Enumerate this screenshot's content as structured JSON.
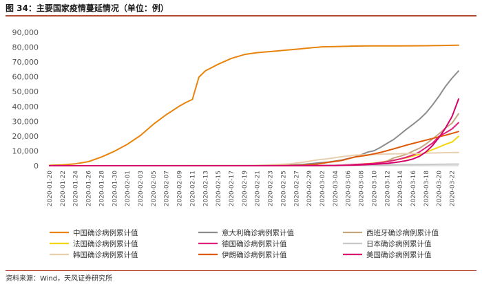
{
  "header": {
    "title": "图 34：主要国家疫情蔓延情况（单位：例）"
  },
  "footer": {
    "source": "资料来源：Wind，天风证券研究所"
  },
  "chart_data": {
    "type": "line",
    "ylim": [
      0,
      90000
    ],
    "yticks": [
      0,
      10000,
      20000,
      30000,
      40000,
      50000,
      60000,
      70000,
      80000,
      90000
    ],
    "ytick_labels": [
      "0",
      "10,000",
      "20,000",
      "30,000",
      "40,000",
      "50,000",
      "60,000",
      "70,000",
      "80,000",
      "90,000"
    ],
    "x_start": "2020-01-20",
    "x_end": "2020-03-23",
    "x_tick_labels": [
      "2020-01-20",
      "2020-01-22",
      "2020-01-24",
      "2020-01-26",
      "2020-01-28",
      "2020-01-30",
      "2020-02-01",
      "2020-02-03",
      "2020-02-05",
      "2020-02-07",
      "2020-02-09",
      "2020-02-11",
      "2020-02-13",
      "2020-02-15",
      "2020-02-17",
      "2020-02-19",
      "2020-02-21",
      "2020-02-23",
      "2020-02-25",
      "2020-02-27",
      "2020-02-29",
      "2020-03-02",
      "2020-03-04",
      "2020-03-06",
      "2020-03-08",
      "2020-03-10",
      "2020-03-12",
      "2020-03-14",
      "2020-03-16",
      "2020-03-18",
      "2020-03-20",
      "2020-03-22"
    ],
    "grid": false,
    "legend_position": "bottom",
    "series": [
      {
        "name": "中国确诊病例累计值",
        "color": "#e8830c",
        "points": [
          [
            "2020-01-20",
            300
          ],
          [
            "2020-01-22",
            570
          ],
          [
            "2020-01-24",
            1300
          ],
          [
            "2020-01-26",
            2800
          ],
          [
            "2020-01-28",
            5900
          ],
          [
            "2020-01-30",
            9800
          ],
          [
            "2020-02-01",
            14500
          ],
          [
            "2020-02-03",
            20400
          ],
          [
            "2020-02-05",
            28000
          ],
          [
            "2020-02-07",
            34500
          ],
          [
            "2020-02-09",
            40200
          ],
          [
            "2020-02-10",
            42700
          ],
          [
            "2020-02-11",
            44700
          ],
          [
            "2020-02-12",
            59800
          ],
          [
            "2020-02-13",
            64000
          ],
          [
            "2020-02-15",
            68500
          ],
          [
            "2020-02-17",
            72400
          ],
          [
            "2020-02-19",
            75000
          ],
          [
            "2020-02-21",
            76300
          ],
          [
            "2020-02-23",
            77000
          ],
          [
            "2020-02-25",
            77800
          ],
          [
            "2020-02-27",
            78600
          ],
          [
            "2020-02-29",
            79400
          ],
          [
            "2020-03-02",
            80200
          ],
          [
            "2020-03-04",
            80400
          ],
          [
            "2020-03-06",
            80650
          ],
          [
            "2020-03-08",
            80750
          ],
          [
            "2020-03-10",
            80800
          ],
          [
            "2020-03-12",
            80850
          ],
          [
            "2020-03-14",
            80850
          ],
          [
            "2020-03-16",
            80900
          ],
          [
            "2020-03-18",
            80950
          ],
          [
            "2020-03-20",
            81100
          ],
          [
            "2020-03-22",
            81250
          ],
          [
            "2020-03-23",
            81300
          ]
        ]
      },
      {
        "name": "意大利确诊病例累计值",
        "color": "#8c8c8c",
        "points": [
          [
            "2020-01-20",
            0
          ],
          [
            "2020-02-20",
            3
          ],
          [
            "2020-02-22",
            79
          ],
          [
            "2020-02-24",
            229
          ],
          [
            "2020-02-26",
            453
          ],
          [
            "2020-02-28",
            888
          ],
          [
            "2020-03-01",
            1694
          ],
          [
            "2020-03-03",
            2502
          ],
          [
            "2020-03-05",
            3858
          ],
          [
            "2020-03-07",
            5883
          ],
          [
            "2020-03-08",
            7375
          ],
          [
            "2020-03-09",
            9172
          ],
          [
            "2020-03-10",
            10149
          ],
          [
            "2020-03-11",
            12462
          ],
          [
            "2020-03-12",
            15113
          ],
          [
            "2020-03-13",
            17660
          ],
          [
            "2020-03-14",
            21157
          ],
          [
            "2020-03-15",
            24747
          ],
          [
            "2020-03-16",
            27980
          ],
          [
            "2020-03-17",
            31506
          ],
          [
            "2020-03-18",
            35713
          ],
          [
            "2020-03-19",
            41035
          ],
          [
            "2020-03-20",
            47021
          ],
          [
            "2020-03-21",
            53578
          ],
          [
            "2020-03-22",
            59138
          ],
          [
            "2020-03-23",
            63927
          ]
        ]
      },
      {
        "name": "西班牙确诊病例累计值",
        "color": "#c4a77e",
        "points": [
          [
            "2020-01-20",
            0
          ],
          [
            "2020-03-01",
            84
          ],
          [
            "2020-03-03",
            165
          ],
          [
            "2020-03-05",
            282
          ],
          [
            "2020-03-07",
            500
          ],
          [
            "2020-03-09",
            1231
          ],
          [
            "2020-03-10",
            1695
          ],
          [
            "2020-03-11",
            2277
          ],
          [
            "2020-03-12",
            3146
          ],
          [
            "2020-03-13",
            5232
          ],
          [
            "2020-03-14",
            6391
          ],
          [
            "2020-03-15",
            7798
          ],
          [
            "2020-03-16",
            9942
          ],
          [
            "2020-03-17",
            11826
          ],
          [
            "2020-03-18",
            14769
          ],
          [
            "2020-03-19",
            18077
          ],
          [
            "2020-03-20",
            21571
          ],
          [
            "2020-03-21",
            25496
          ],
          [
            "2020-03-22",
            28768
          ],
          [
            "2020-03-23",
            35136
          ]
        ]
      },
      {
        "name": "法国确诊病例累计值",
        "color": "#f2d60f",
        "points": [
          [
            "2020-01-20",
            0
          ],
          [
            "2020-02-28",
            57
          ],
          [
            "2020-03-02",
            191
          ],
          [
            "2020-03-04",
            285
          ],
          [
            "2020-03-06",
            653
          ],
          [
            "2020-03-08",
            1126
          ],
          [
            "2020-03-10",
            1784
          ],
          [
            "2020-03-12",
            2876
          ],
          [
            "2020-03-14",
            4469
          ],
          [
            "2020-03-15",
            5380
          ],
          [
            "2020-03-16",
            6573
          ],
          [
            "2020-03-17",
            7652
          ],
          [
            "2020-03-18",
            9043
          ],
          [
            "2020-03-19",
            10871
          ],
          [
            "2020-03-20",
            12612
          ],
          [
            "2020-03-21",
            14459
          ],
          [
            "2020-03-22",
            16018
          ],
          [
            "2020-03-23",
            19856
          ]
        ]
      },
      {
        "name": "德国确诊病例累计值",
        "color": "#e0217a",
        "points": [
          [
            "2020-01-20",
            0
          ],
          [
            "2020-02-28",
            60
          ],
          [
            "2020-03-02",
            160
          ],
          [
            "2020-03-04",
            262
          ],
          [
            "2020-03-06",
            670
          ],
          [
            "2020-03-08",
            1040
          ],
          [
            "2020-03-10",
            1565
          ],
          [
            "2020-03-12",
            2745
          ],
          [
            "2020-03-14",
            4585
          ],
          [
            "2020-03-15",
            5795
          ],
          [
            "2020-03-16",
            7272
          ],
          [
            "2020-03-17",
            9367
          ],
          [
            "2020-03-18",
            12327
          ],
          [
            "2020-03-19",
            15320
          ],
          [
            "2020-03-20",
            19848
          ],
          [
            "2020-03-21",
            22213
          ],
          [
            "2020-03-22",
            24873
          ],
          [
            "2020-03-23",
            29056
          ]
        ]
      },
      {
        "name": "日本确诊病例累计值",
        "color": "#c8c8c8",
        "points": [
          [
            "2020-01-20",
            0
          ],
          [
            "2020-02-08",
            26
          ],
          [
            "2020-02-15",
            59
          ],
          [
            "2020-02-22",
            132
          ],
          [
            "2020-02-29",
            241
          ],
          [
            "2020-03-07",
            461
          ],
          [
            "2020-03-14",
            780
          ],
          [
            "2020-03-18",
            889
          ],
          [
            "2020-03-23",
            1128
          ]
        ]
      },
      {
        "name": "韩国确诊病例累计值",
        "color": "#e8cfb0",
        "points": [
          [
            "2020-01-20",
            1
          ],
          [
            "2020-02-18",
            31
          ],
          [
            "2020-02-20",
            104
          ],
          [
            "2020-02-22",
            433
          ],
          [
            "2020-02-24",
            833
          ],
          [
            "2020-02-26",
            1261
          ],
          [
            "2020-02-28",
            2337
          ],
          [
            "2020-03-01",
            3736
          ],
          [
            "2020-03-03",
            4812
          ],
          [
            "2020-03-05",
            6088
          ],
          [
            "2020-03-07",
            7134
          ],
          [
            "2020-03-09",
            7478
          ],
          [
            "2020-03-11",
            7755
          ],
          [
            "2020-03-13",
            7979
          ],
          [
            "2020-03-15",
            8162
          ],
          [
            "2020-03-17",
            8320
          ],
          [
            "2020-03-19",
            8565
          ],
          [
            "2020-03-21",
            8799
          ],
          [
            "2020-03-23",
            8961
          ]
        ]
      },
      {
        "name": "伊朗确诊病例累计值",
        "color": "#e05a0c",
        "points": [
          [
            "2020-01-20",
            0
          ],
          [
            "2020-02-19",
            2
          ],
          [
            "2020-02-22",
            28
          ],
          [
            "2020-02-25",
            95
          ],
          [
            "2020-02-28",
            388
          ],
          [
            "2020-03-01",
            978
          ],
          [
            "2020-03-03",
            2336
          ],
          [
            "2020-03-05",
            3513
          ],
          [
            "2020-03-07",
            5823
          ],
          [
            "2020-03-09",
            7161
          ],
          [
            "2020-03-11",
            9000
          ],
          [
            "2020-03-13",
            11364
          ],
          [
            "2020-03-15",
            13938
          ],
          [
            "2020-03-17",
            16169
          ],
          [
            "2020-03-19",
            18407
          ],
          [
            "2020-03-21",
            20610
          ],
          [
            "2020-03-23",
            23049
          ]
        ]
      },
      {
        "name": "美国确诊病例累计值",
        "color": "#d6006b",
        "points": [
          [
            "2020-01-20",
            1
          ],
          [
            "2020-02-20",
            15
          ],
          [
            "2020-02-28",
            60
          ],
          [
            "2020-03-02",
            100
          ],
          [
            "2020-03-04",
            150
          ],
          [
            "2020-03-06",
            320
          ],
          [
            "2020-03-08",
            550
          ],
          [
            "2020-03-10",
            990
          ],
          [
            "2020-03-12",
            1600
          ],
          [
            "2020-03-14",
            2700
          ],
          [
            "2020-03-15",
            3500
          ],
          [
            "2020-03-16",
            4600
          ],
          [
            "2020-03-17",
            6400
          ],
          [
            "2020-03-18",
            9400
          ],
          [
            "2020-03-19",
            13700
          ],
          [
            "2020-03-20",
            19100
          ],
          [
            "2020-03-21",
            25500
          ],
          [
            "2020-03-22",
            33300
          ],
          [
            "2020-03-23",
            45000
          ]
        ]
      }
    ]
  }
}
